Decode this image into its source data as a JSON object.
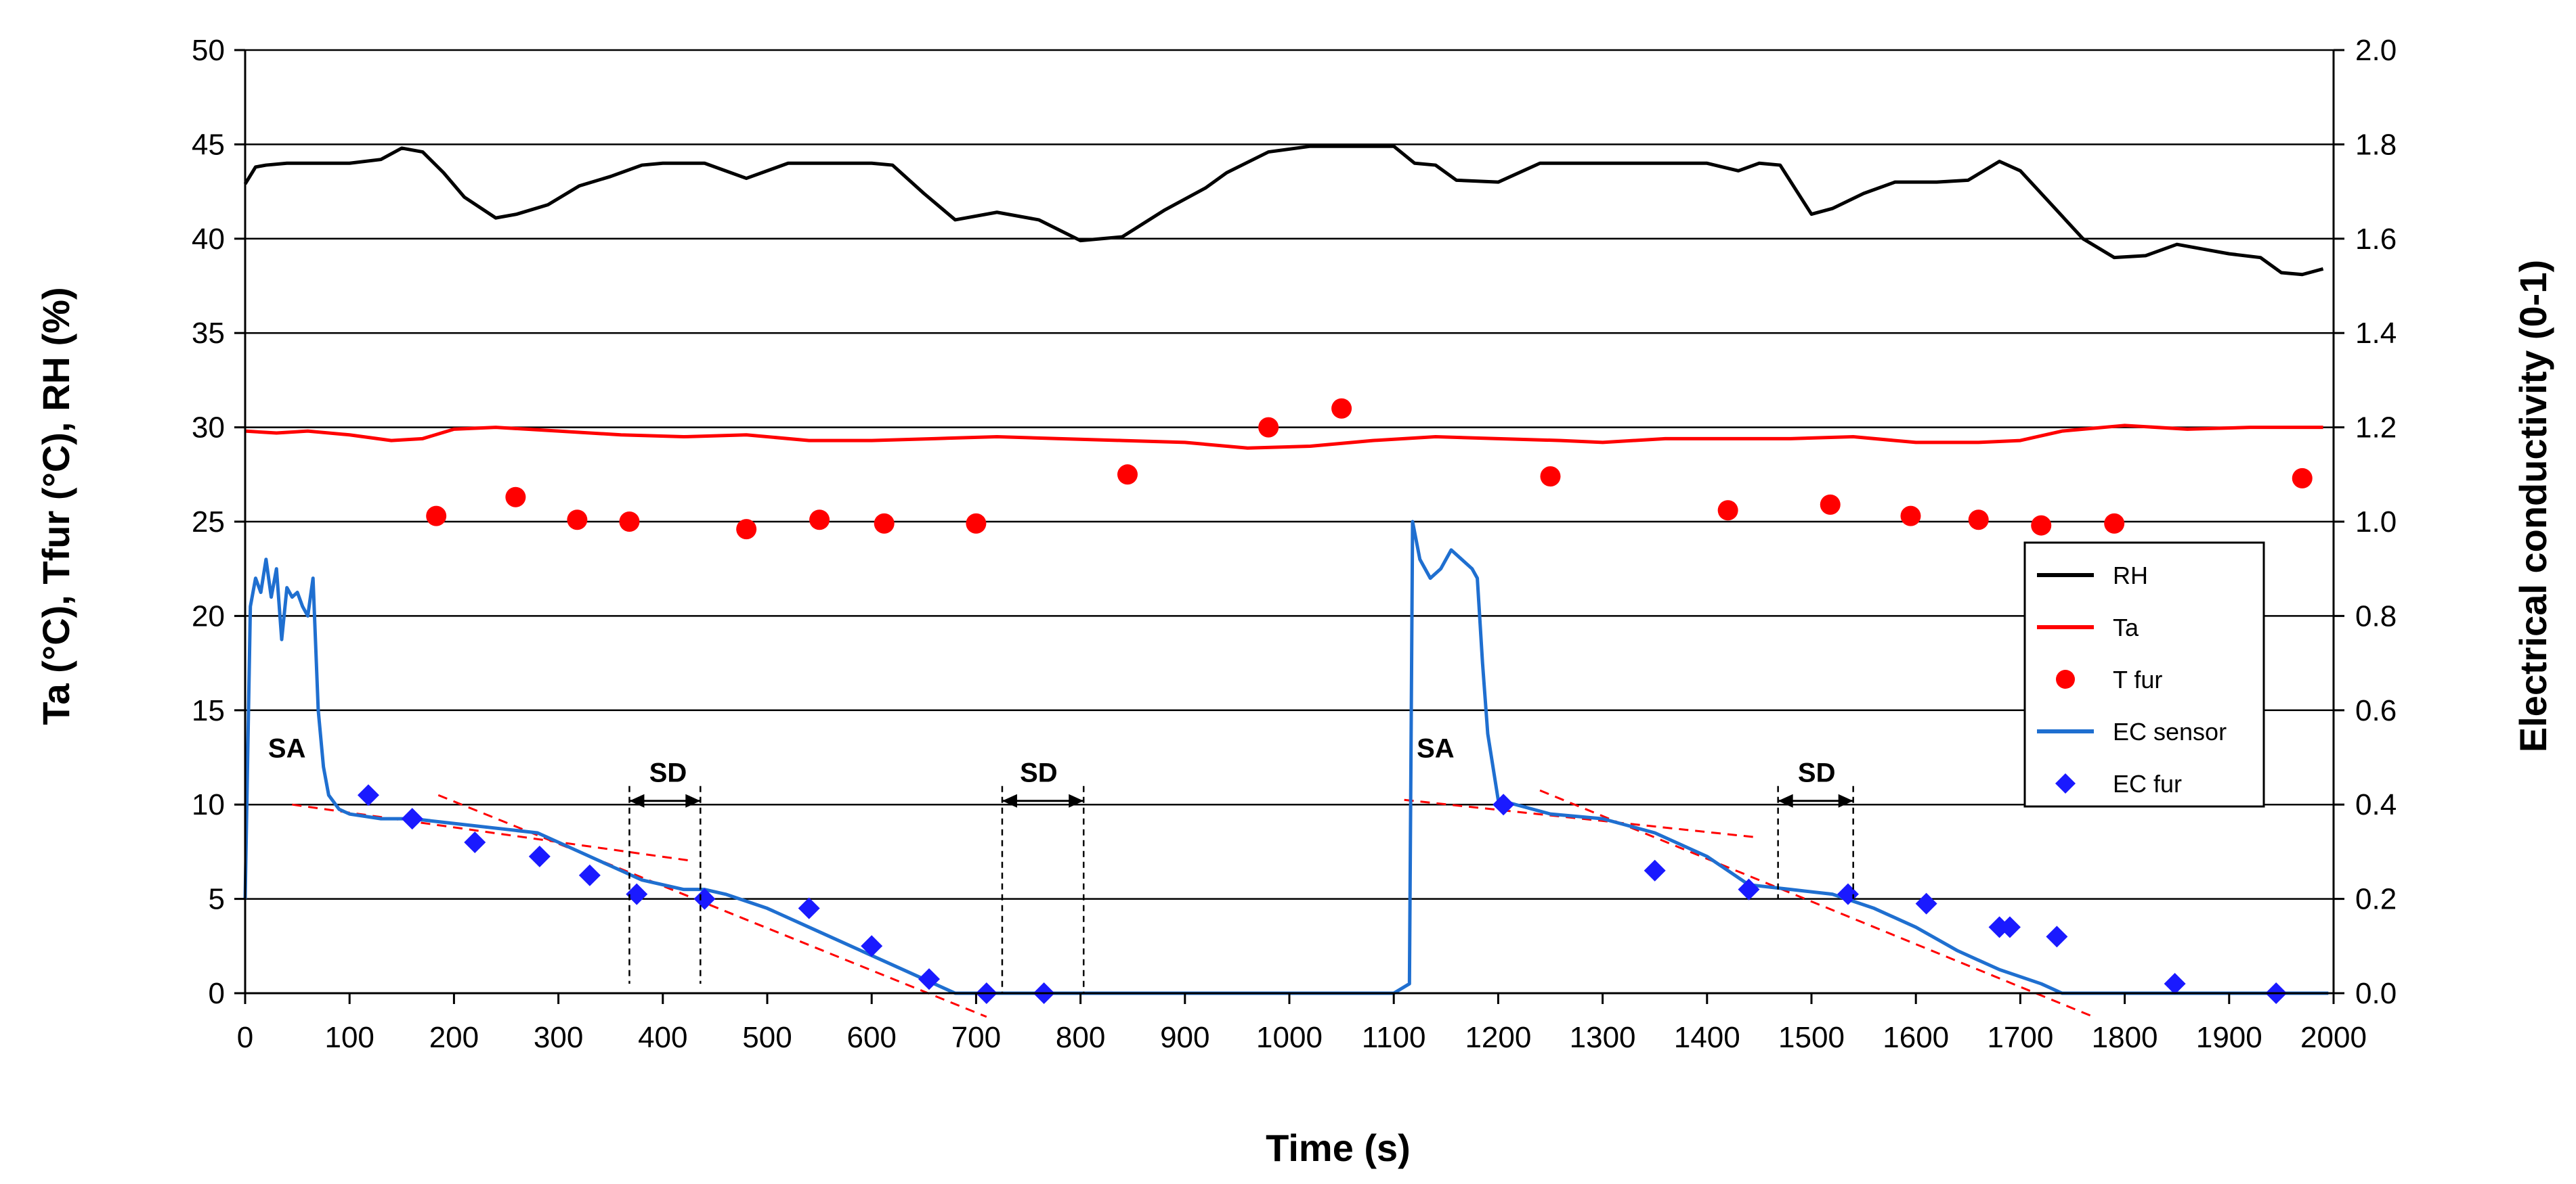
{
  "chart_data": {
    "type": "line",
    "title": "",
    "xlabel": "Time (s)",
    "ylabel_left": "Ta (°C), Tfur (°C), RH (%)",
    "ylabel_right": "Electrical conductivity (0-1)",
    "xlim": [
      0,
      2000
    ],
    "ylim_left": [
      0,
      50
    ],
    "ylim_right": [
      0,
      2.0
    ],
    "x_ticks": [
      "0",
      "100",
      "200",
      "300",
      "400",
      "500",
      "600",
      "700",
      "800",
      "900",
      "1000",
      "1100",
      "1200",
      "1300",
      "1400",
      "1500",
      "1600",
      "1700",
      "1800",
      "1900",
      "2000"
    ],
    "y_left_ticks": [
      "0",
      "5",
      "10",
      "15",
      "20",
      "25",
      "30",
      "35",
      "40",
      "45",
      "50"
    ],
    "y_right_ticks": [
      "0.0",
      "0.2",
      "0.4",
      "0.6",
      "0.8",
      "1.0",
      "1.2",
      "1.4",
      "1.6",
      "1.8",
      "2.0"
    ],
    "grid": "horizontal",
    "legend_position": "right",
    "colors": {
      "rh": "#000000",
      "ta": "#ff0000",
      "tfur": "#ff0000",
      "ec_sensor": "#1f6fd0",
      "ec_fur": "#1a1aff",
      "fit": "#ff0000"
    },
    "legend": [
      {
        "label": "RH",
        "kind": "line",
        "color": "#000000"
      },
      {
        "label": "Ta",
        "kind": "line",
        "color": "#ff0000"
      },
      {
        "label": "T fur",
        "kind": "circle",
        "color": "#ff0000"
      },
      {
        "label": "EC sensor",
        "kind": "line",
        "color": "#1f6fd0"
      },
      {
        "label": "EC fur",
        "kind": "diamond",
        "color": "#1a1aff"
      }
    ],
    "series": [
      {
        "name": "RH",
        "axis": "left",
        "x": [
          0,
          10,
          20,
          40,
          60,
          100,
          130,
          150,
          170,
          190,
          210,
          240,
          260,
          290,
          320,
          350,
          380,
          400,
          440,
          480,
          520,
          560,
          600,
          620,
          650,
          680,
          720,
          760,
          800,
          840,
          880,
          920,
          940,
          980,
          1020,
          1060,
          1100,
          1120,
          1140,
          1160,
          1200,
          1240,
          1280,
          1320,
          1360,
          1400,
          1430,
          1450,
          1470,
          1500,
          1520,
          1550,
          1580,
          1620,
          1650,
          1680,
          1700,
          1730,
          1760,
          1790,
          1820,
          1850,
          1880,
          1900,
          1930,
          1950,
          1970,
          1990
        ],
        "values": [
          42.9,
          43.8,
          43.9,
          44.0,
          44.0,
          44.0,
          44.2,
          44.8,
          44.6,
          43.5,
          42.2,
          41.1,
          41.3,
          41.8,
          42.8,
          43.3,
          43.9,
          44.0,
          44.0,
          43.2,
          44.0,
          44.0,
          44.0,
          43.9,
          42.4,
          41.0,
          41.4,
          41.0,
          39.9,
          40.1,
          41.5,
          42.7,
          43.5,
          44.6,
          44.9,
          44.9,
          44.9,
          44.0,
          43.9,
          43.1,
          43.0,
          44.0,
          44.0,
          44.0,
          44.0,
          44.0,
          43.6,
          44.0,
          43.9,
          41.3,
          41.6,
          42.4,
          43.0,
          43.0,
          43.1,
          44.1,
          43.6,
          41.8,
          40.0,
          39.0,
          39.1,
          39.7,
          39.4,
          39.2,
          39.0,
          38.2,
          38.1,
          38.4
        ]
      },
      {
        "name": "Ta",
        "axis": "left",
        "x": [
          0,
          30,
          60,
          100,
          140,
          170,
          200,
          240,
          300,
          360,
          420,
          480,
          540,
          600,
          660,
          720,
          780,
          840,
          900,
          960,
          1020,
          1080,
          1140,
          1200,
          1260,
          1300,
          1360,
          1420,
          1480,
          1540,
          1600,
          1660,
          1700,
          1740,
          1800,
          1860,
          1920,
          1990
        ],
        "values": [
          29.8,
          29.7,
          29.8,
          29.6,
          29.3,
          29.4,
          29.9,
          30.0,
          29.8,
          29.6,
          29.5,
          29.6,
          29.3,
          29.3,
          29.4,
          29.5,
          29.4,
          29.3,
          29.2,
          28.9,
          29.0,
          29.3,
          29.5,
          29.4,
          29.3,
          29.2,
          29.4,
          29.4,
          29.4,
          29.5,
          29.2,
          29.2,
          29.3,
          29.8,
          30.1,
          29.9,
          30.0,
          30.0
        ]
      },
      {
        "name": "T fur",
        "axis": "left",
        "x": [
          183,
          259,
          318,
          368,
          480,
          550,
          612,
          700,
          845,
          980,
          1050,
          1250,
          1420,
          1518,
          1595,
          1660,
          1720,
          1790,
          1970
        ],
        "values": [
          25.3,
          26.3,
          25.1,
          25.0,
          24.6,
          25.1,
          24.9,
          24.9,
          27.5,
          30.0,
          31.0,
          27.4,
          25.6,
          25.9,
          25.3,
          25.1,
          24.8,
          24.9,
          27.3
        ]
      },
      {
        "name": "EC sensor",
        "axis": "right",
        "x": [
          0,
          5,
          10,
          15,
          20,
          25,
          30,
          35,
          40,
          45,
          50,
          55,
          60,
          65,
          70,
          75,
          80,
          90,
          100,
          130,
          160,
          200,
          240,
          280,
          320,
          360,
          380,
          400,
          420,
          440,
          460,
          500,
          540,
          580,
          620,
          660,
          680,
          700,
          800,
          900,
          1000,
          1100,
          1115,
          1118,
          1125,
          1135,
          1145,
          1155,
          1165,
          1175,
          1180,
          1185,
          1190,
          1200,
          1250,
          1300,
          1350,
          1400,
          1440,
          1480,
          1520,
          1560,
          1600,
          1640,
          1680,
          1720,
          1740,
          1800,
          1900,
          1995
        ],
        "values": [
          0.2,
          0.82,
          0.88,
          0.85,
          0.92,
          0.84,
          0.9,
          0.75,
          0.86,
          0.84,
          0.85,
          0.82,
          0.8,
          0.88,
          0.6,
          0.48,
          0.42,
          0.39,
          0.38,
          0.37,
          0.37,
          0.36,
          0.35,
          0.34,
          0.3,
          0.26,
          0.24,
          0.23,
          0.22,
          0.22,
          0.21,
          0.18,
          0.14,
          0.1,
          0.06,
          0.02,
          0.0,
          0.0,
          0.0,
          0.0,
          0.0,
          0.0,
          0.02,
          1.0,
          0.92,
          0.88,
          0.9,
          0.94,
          0.92,
          0.9,
          0.88,
          0.7,
          0.55,
          0.41,
          0.38,
          0.37,
          0.34,
          0.29,
          0.23,
          0.22,
          0.21,
          0.18,
          0.14,
          0.09,
          0.05,
          0.02,
          0.0,
          0.0,
          0.0,
          0.0
        ]
      },
      {
        "name": "EC fur",
        "axis": "right",
        "x": [
          118,
          160,
          220,
          282,
          330,
          375,
          440,
          540,
          600,
          655,
          710,
          765,
          1205,
          1350,
          1440,
          1535,
          1610,
          1680,
          1690,
          1735,
          1848,
          1945
        ],
        "values": [
          0.42,
          0.37,
          0.32,
          0.29,
          0.25,
          0.21,
          0.2,
          0.18,
          0.1,
          0.03,
          0.0,
          0.0,
          0.4,
          0.26,
          0.22,
          0.21,
          0.19,
          0.14,
          0.14,
          0.12,
          0.02,
          0.0
        ]
      }
    ],
    "fit_lines": [
      {
        "axis": "right",
        "x": [
          45,
          430
        ],
        "values": [
          0.4,
          0.28
        ]
      },
      {
        "axis": "right",
        "x": [
          185,
          710
        ],
        "values": [
          0.42,
          -0.05
        ]
      },
      {
        "axis": "right",
        "x": [
          1110,
          1450
        ],
        "values": [
          0.41,
          0.33
        ]
      },
      {
        "axis": "right",
        "x": [
          1240,
          1770
        ],
        "values": [
          0.43,
          -0.05
        ]
      }
    ],
    "annotations": [
      {
        "text": "SA",
        "x": 40,
        "y": 12.5,
        "axis": "left"
      },
      {
        "text": "SA",
        "x": 1140,
        "y": 12.5,
        "axis": "left"
      },
      {
        "text": "SD",
        "x": 405,
        "y": 11.2,
        "axis": "left",
        "span": [
          368,
          436
        ],
        "drop_to": 0.5
      },
      {
        "text": "SD",
        "x": 760,
        "y": 11.2,
        "axis": "left",
        "span": [
          725,
          803
        ],
        "drop_to": 0
      },
      {
        "text": "SD",
        "x": 1505,
        "y": 11.2,
        "axis": "left",
        "span": [
          1468,
          1540
        ],
        "drop_to": 5
      }
    ]
  }
}
